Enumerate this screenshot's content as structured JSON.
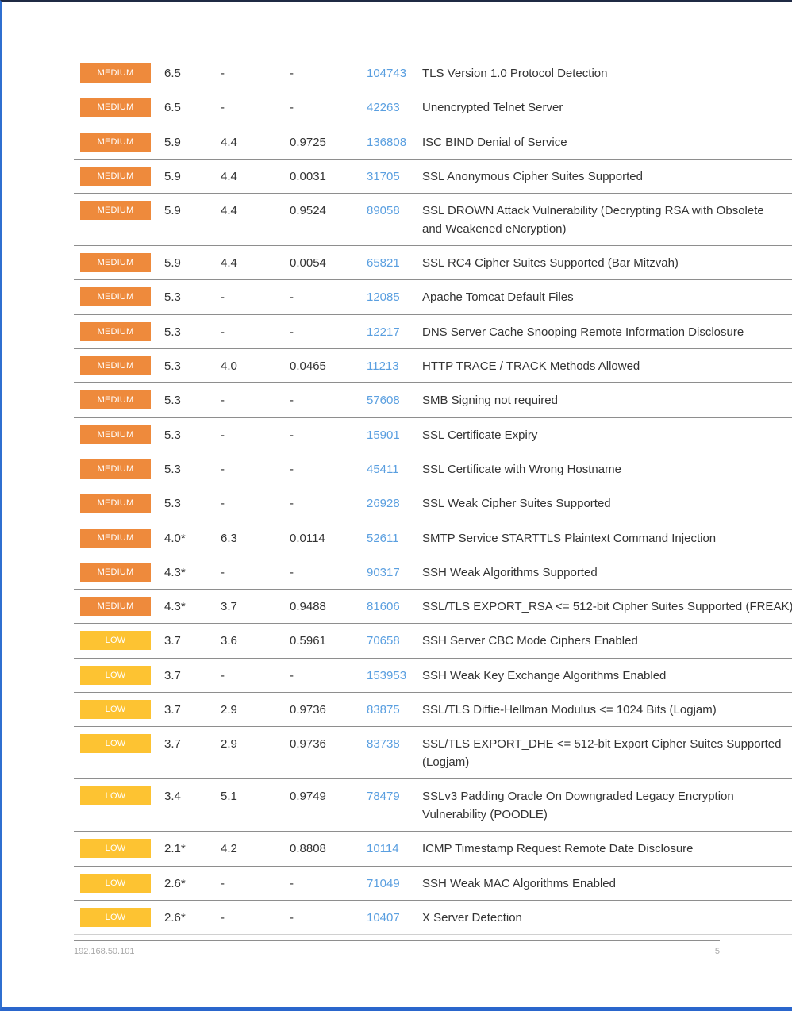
{
  "colors": {
    "medium": "#ee8a3c",
    "low": "#fdc332",
    "plugin_link": "#5a9fe0",
    "text": "#333333"
  },
  "rows": [
    {
      "severity": "MEDIUM",
      "cvss_v3": "6.5",
      "cvss_v2": "-",
      "epss": "-",
      "plugin": "104743",
      "name": [
        "TLS Version 1.0 Protocol Detection"
      ]
    },
    {
      "severity": "MEDIUM",
      "cvss_v3": "6.5",
      "cvss_v2": "-",
      "epss": "-",
      "plugin": "42263",
      "name": [
        "Unencrypted Telnet Server"
      ]
    },
    {
      "severity": "MEDIUM",
      "cvss_v3": "5.9",
      "cvss_v2": "4.4",
      "epss": "0.9725",
      "plugin": "136808",
      "name": [
        "ISC BIND Denial of Service"
      ]
    },
    {
      "severity": "MEDIUM",
      "cvss_v3": "5.9",
      "cvss_v2": "4.4",
      "epss": "0.0031",
      "plugin": "31705",
      "name": [
        "SSL Anonymous Cipher Suites Supported"
      ]
    },
    {
      "severity": "MEDIUM",
      "cvss_v3": "5.9",
      "cvss_v2": "4.4",
      "epss": "0.9524",
      "plugin": "89058",
      "name": [
        "SSL DROWN Attack Vulnerability (Decrypting RSA with Obsolete",
        "and Weakened eNcryption)"
      ]
    },
    {
      "severity": "MEDIUM",
      "cvss_v3": "5.9",
      "cvss_v2": "4.4",
      "epss": "0.0054",
      "plugin": "65821",
      "name": [
        "SSL RC4 Cipher Suites Supported (Bar Mitzvah)"
      ]
    },
    {
      "severity": "MEDIUM",
      "cvss_v3": "5.3",
      "cvss_v2": "-",
      "epss": "-",
      "plugin": "12085",
      "name": [
        "Apache Tomcat Default Files"
      ]
    },
    {
      "severity": "MEDIUM",
      "cvss_v3": "5.3",
      "cvss_v2": "-",
      "epss": "-",
      "plugin": "12217",
      "name": [
        "DNS Server Cache Snooping Remote Information Disclosure"
      ]
    },
    {
      "severity": "MEDIUM",
      "cvss_v3": "5.3",
      "cvss_v2": "4.0",
      "epss": "0.0465",
      "plugin": "11213",
      "name": [
        "HTTP TRACE / TRACK Methods Allowed"
      ]
    },
    {
      "severity": "MEDIUM",
      "cvss_v3": "5.3",
      "cvss_v2": "-",
      "epss": "-",
      "plugin": "57608",
      "name": [
        "SMB Signing not required"
      ]
    },
    {
      "severity": "MEDIUM",
      "cvss_v3": "5.3",
      "cvss_v2": "-",
      "epss": "-",
      "plugin": "15901",
      "name": [
        "SSL Certificate Expiry"
      ]
    },
    {
      "severity": "MEDIUM",
      "cvss_v3": "5.3",
      "cvss_v2": "-",
      "epss": "-",
      "plugin": "45411",
      "name": [
        "SSL Certificate with Wrong Hostname"
      ]
    },
    {
      "severity": "MEDIUM",
      "cvss_v3": "5.3",
      "cvss_v2": "-",
      "epss": "-",
      "plugin": "26928",
      "name": [
        "SSL Weak Cipher Suites Supported"
      ]
    },
    {
      "severity": "MEDIUM",
      "cvss_v3": "4.0*",
      "cvss_v2": "6.3",
      "epss": "0.0114",
      "plugin": "52611",
      "name": [
        "SMTP Service STARTTLS Plaintext Command Injection"
      ]
    },
    {
      "severity": "MEDIUM",
      "cvss_v3": "4.3*",
      "cvss_v2": "-",
      "epss": "-",
      "plugin": "90317",
      "name": [
        "SSH Weak Algorithms Supported"
      ]
    },
    {
      "severity": "MEDIUM",
      "cvss_v3": "4.3*",
      "cvss_v2": "3.7",
      "epss": "0.9488",
      "plugin": "81606",
      "name": [
        "SSL/TLS EXPORT_RSA <= 512-bit Cipher Suites Supported (FREAK)"
      ]
    },
    {
      "severity": "LOW",
      "cvss_v3": "3.7",
      "cvss_v2": "3.6",
      "epss": "0.5961",
      "plugin": "70658",
      "name": [
        "SSH Server CBC Mode Ciphers Enabled"
      ]
    },
    {
      "severity": "LOW",
      "cvss_v3": "3.7",
      "cvss_v2": "-",
      "epss": "-",
      "plugin": "153953",
      "name": [
        "SSH Weak Key Exchange Algorithms Enabled"
      ]
    },
    {
      "severity": "LOW",
      "cvss_v3": "3.7",
      "cvss_v2": "2.9",
      "epss": "0.9736",
      "plugin": "83875",
      "name": [
        "SSL/TLS Diffie-Hellman Modulus <= 1024 Bits (Logjam)"
      ]
    },
    {
      "severity": "LOW",
      "cvss_v3": "3.7",
      "cvss_v2": "2.9",
      "epss": "0.9736",
      "plugin": "83738",
      "name": [
        "SSL/TLS EXPORT_DHE <= 512-bit Export Cipher Suites Supported",
        "(Logjam)"
      ]
    },
    {
      "severity": "LOW",
      "cvss_v3": "3.4",
      "cvss_v2": "5.1",
      "epss": "0.9749",
      "plugin": "78479",
      "name": [
        "SSLv3 Padding Oracle On Downgraded Legacy Encryption",
        "Vulnerability (POODLE)"
      ]
    },
    {
      "severity": "LOW",
      "cvss_v3": "2.1*",
      "cvss_v2": "4.2",
      "epss": "0.8808",
      "plugin": "10114",
      "name": [
        "ICMP Timestamp Request Remote Date Disclosure"
      ]
    },
    {
      "severity": "LOW",
      "cvss_v3": "2.6*",
      "cvss_v2": "-",
      "epss": "-",
      "plugin": "71049",
      "name": [
        "SSH Weak MAC Algorithms Enabled"
      ]
    },
    {
      "severity": "LOW",
      "cvss_v3": "2.6*",
      "cvss_v2": "-",
      "epss": "-",
      "plugin": "10407",
      "name": [
        "X Server Detection"
      ]
    }
  ],
  "footer": {
    "host": "192.168.50.101",
    "page_number": "5"
  }
}
